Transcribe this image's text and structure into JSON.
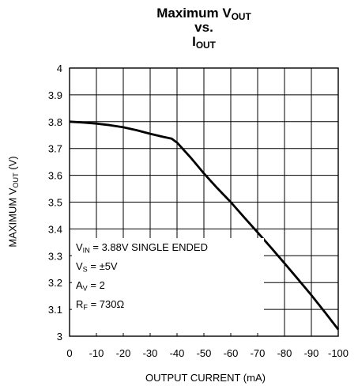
{
  "title": {
    "line1_pre": "Maximum V",
    "line1_sub": "OUT",
    "line2": "vs.",
    "line3_pre": "I",
    "line3_sub": "OUT"
  },
  "ylabel": {
    "pre": "MAXIMUM V",
    "sub": "OUT",
    "post": " (V)"
  },
  "xlabel": "OUTPUT CURRENT (mA)",
  "legend": [
    {
      "pre": "V",
      "sub": "IN",
      "post": " = 3.88V SINGLE ENDED"
    },
    {
      "pre": "V",
      "sub": "S",
      "post": " = ±5V"
    },
    {
      "pre": "A",
      "sub": "V",
      "post": " = 2"
    },
    {
      "pre": "R",
      "sub": "F",
      "post": " = 730Ω"
    }
  ],
  "chart_data": {
    "type": "line",
    "xlim": [
      0,
      -100
    ],
    "ylim": [
      3,
      4
    ],
    "x_ticks": [
      "0",
      "-10",
      "-20",
      "-30",
      "-40",
      "-50",
      "-60",
      "-70",
      "-80",
      "-90",
      "-100"
    ],
    "y_ticks": [
      "3",
      "3.1",
      "3.2",
      "3.3",
      "3.4",
      "3.5",
      "3.6",
      "3.7",
      "3.8",
      "3.9",
      "4"
    ],
    "grid": true,
    "series": [
      {
        "x": [
          0,
          -5,
          -10,
          -15,
          -20,
          -25,
          -30,
          -35,
          -38,
          -40,
          -45,
          -50,
          -55,
          -60,
          -65,
          -70,
          -75,
          -80,
          -85,
          -90,
          -95,
          -100
        ],
        "y": [
          3.8,
          3.797,
          3.793,
          3.787,
          3.779,
          3.768,
          3.755,
          3.743,
          3.737,
          3.722,
          3.667,
          3.607,
          3.552,
          3.5,
          3.443,
          3.387,
          3.33,
          3.272,
          3.213,
          3.153,
          3.09,
          3.025
        ]
      }
    ]
  }
}
